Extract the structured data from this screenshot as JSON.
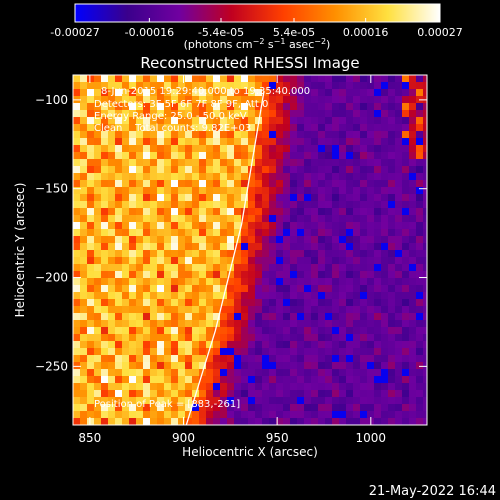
{
  "chart_data": {
    "type": "heatmap",
    "title": "Reconstructed RHESSI Image",
    "xlabel": "Heliocentric X (arcsec)",
    "ylabel": "Heliocentric Y (arcsec)",
    "xlim": [
      841,
      1030
    ],
    "ylim": [
      -283,
      -86
    ],
    "x_ticks": [
      850,
      900,
      950,
      1000
    ],
    "y_ticks": [
      -100,
      -150,
      -200,
      -250
    ],
    "x_tick_labels": [
      "850",
      "900",
      "950",
      "1000"
    ],
    "y_tick_labels": [
      "−100",
      "−150",
      "−200",
      "−250"
    ],
    "colorbar": {
      "range": [
        -0.00027,
        0.00027
      ],
      "tick_values": [
        -0.00027,
        -0.00016,
        -5.4e-05,
        5.4e-05,
        0.00016,
        0.00027
      ],
      "tick_labels": [
        "-0.00027",
        "-0.00016",
        "-5.4e-05",
        "5.4e-05",
        "0.00016",
        "0.00027"
      ],
      "colors": [
        "#0000ff",
        "#3a008c",
        "#7000a0",
        "#c00020",
        "#ff4000",
        "#ff9000",
        "#ffe040",
        "#ffffff"
      ]
    },
    "annotations": [
      "8-Jun-2015 19:29:40.000 to 19:35:40.000",
      "Detectors: 3F 5F 6F 7F 8F 9F, Att 0",
      "Energy Range: 25.0 - 50.0 keV",
      "Clean    Total counts: 9.82E+03",
      "Position of Peak = [883,-261]"
    ],
    "limb_line": [
      [
        901.5,
        -283
      ],
      [
        917,
        -230
      ],
      [
        931,
        -170
      ],
      [
        943,
        -95
      ]
    ]
  },
  "footer": {
    "timestamp": "21-May-2022 16:44"
  }
}
